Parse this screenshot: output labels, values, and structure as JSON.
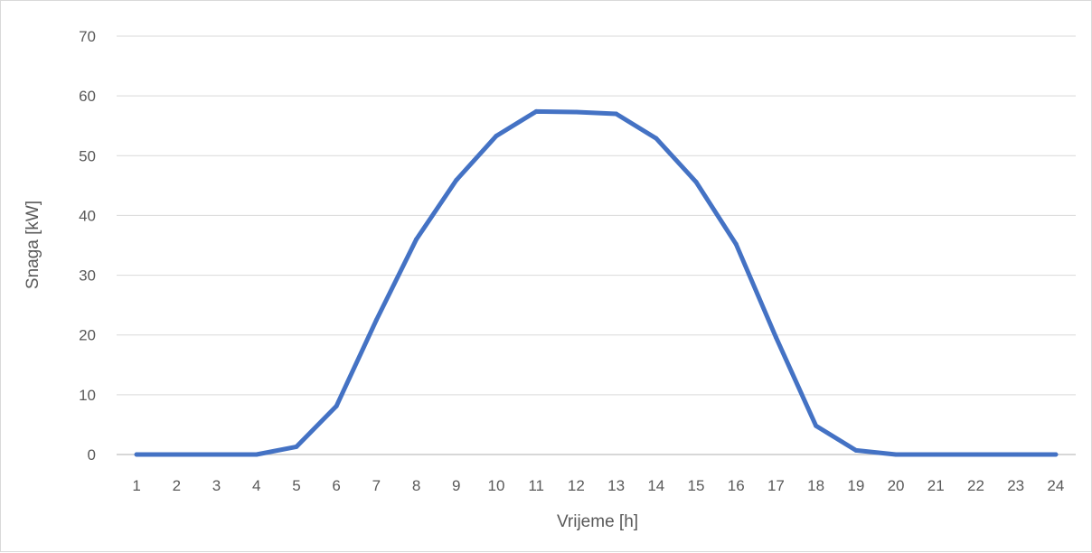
{
  "chart_data": {
    "type": "line",
    "title": "",
    "xlabel": "Vrijeme [h]",
    "ylabel": "Snaga [kW]",
    "categories": [
      "1",
      "2",
      "3",
      "4",
      "5",
      "6",
      "7",
      "8",
      "9",
      "10",
      "11",
      "12",
      "13",
      "14",
      "15",
      "16",
      "17",
      "18",
      "19",
      "20",
      "21",
      "22",
      "23",
      "24"
    ],
    "series": [
      {
        "color": "#4472c4",
        "values": [
          0,
          0,
          0,
          0,
          1.3,
          8.1,
          22.5,
          36.0,
          45.9,
          53.3,
          57.4,
          57.3,
          57.0,
          52.9,
          45.6,
          35.2,
          19.6,
          4.8,
          0.7,
          0,
          0,
          0,
          0,
          0
        ]
      }
    ],
    "ylim": [
      0,
      70
    ],
    "yticks": [
      0,
      10,
      20,
      30,
      40,
      50,
      60,
      70
    ],
    "grid": true,
    "legend": "none"
  }
}
